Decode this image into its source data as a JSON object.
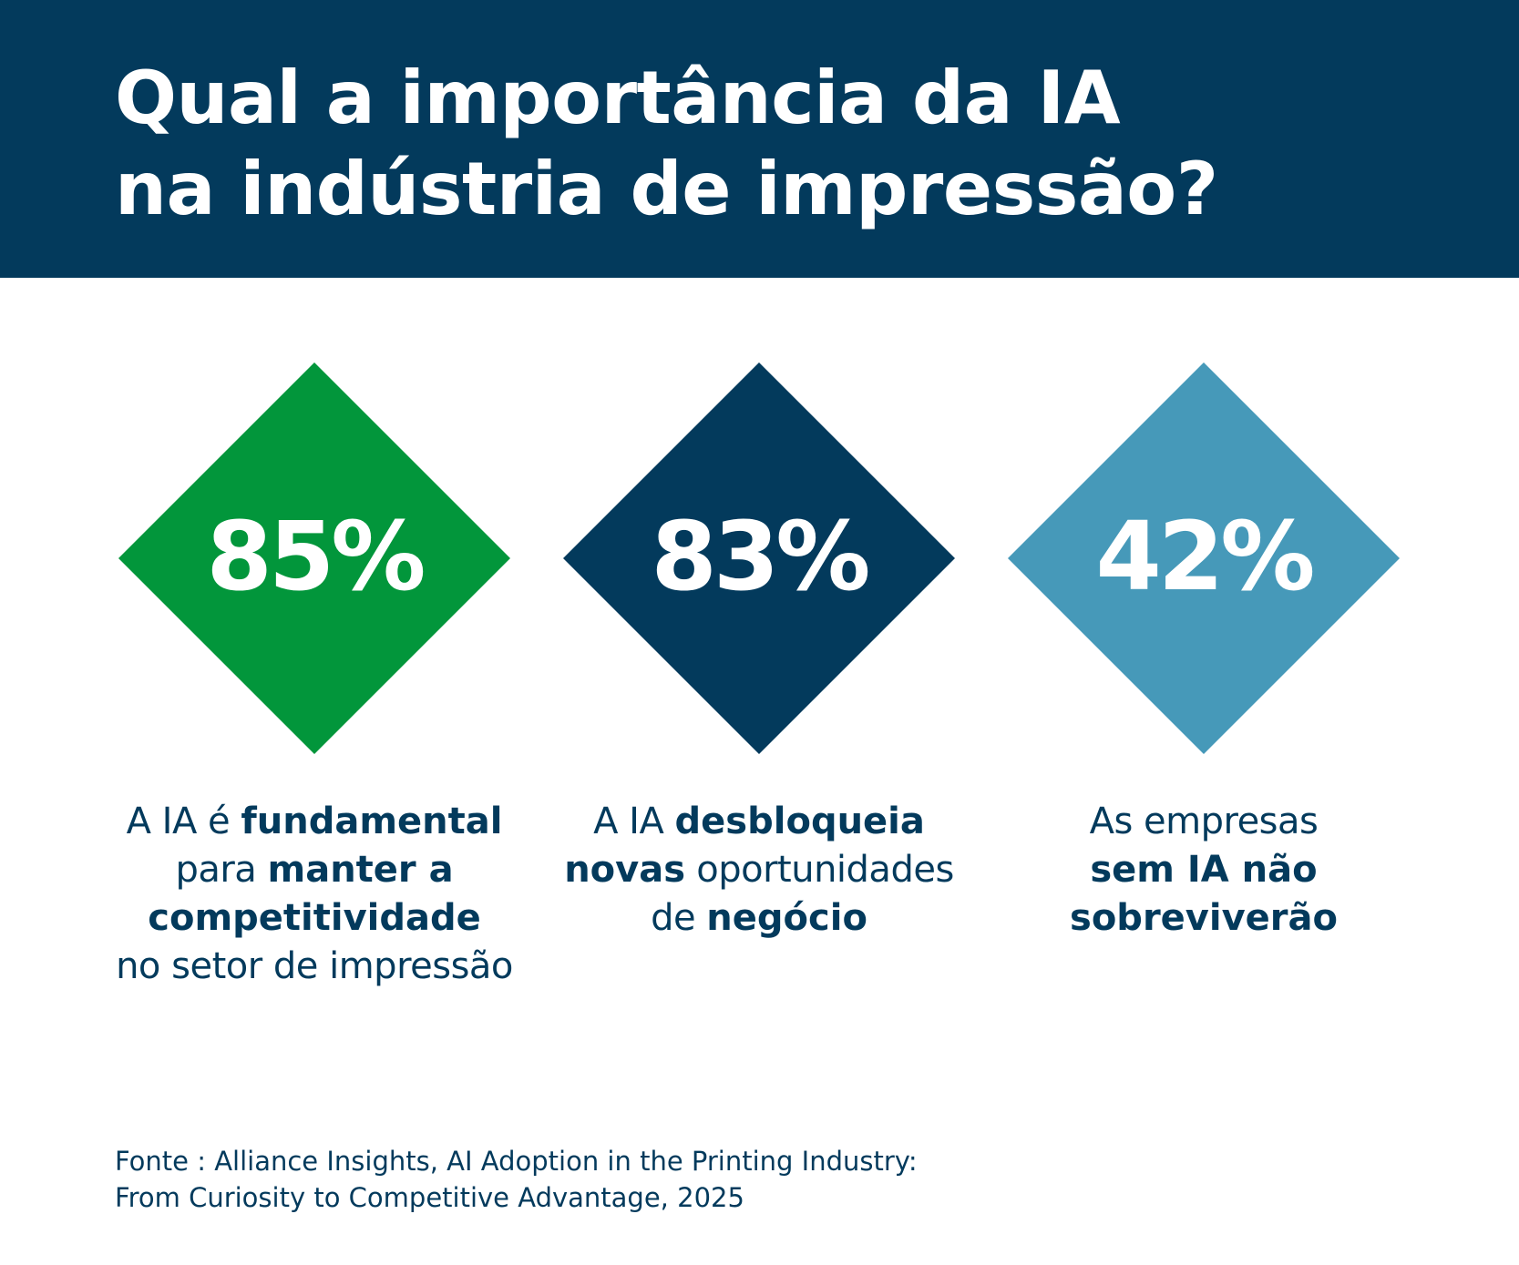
{
  "header": {
    "title_line1": "Qual a importância da IA",
    "title_line2": "na indústria de impressão?",
    "background_color": "#033a5c"
  },
  "stats": [
    {
      "value": "85%",
      "color": "#02963b",
      "caption": {
        "l1_a": "A IA é ",
        "l1_b": "fundamental",
        "l2_a": "para ",
        "l2_b": "manter a",
        "l3_b": "competitividade",
        "l4_a": "no setor de impressão"
      }
    },
    {
      "value": "83%",
      "color": "#033a5c",
      "caption": {
        "l1_a": "A IA ",
        "l1_b": "desbloqueia",
        "l2_b": "novas",
        "l2_a": " oportunidades",
        "l3_a": "de ",
        "l3_b": "negócio"
      }
    },
    {
      "value": "42%",
      "color": "#4699b9",
      "caption": {
        "l1_a": "As empresas",
        "l2_b": "sem IA não",
        "l3_b": "sobreviverão"
      }
    }
  ],
  "source": {
    "line1": "Fonte : Alliance Insights, AI Adoption in the Printing Industry:",
    "line2": "From Curiosity to Competitive Advantage, 2025"
  }
}
